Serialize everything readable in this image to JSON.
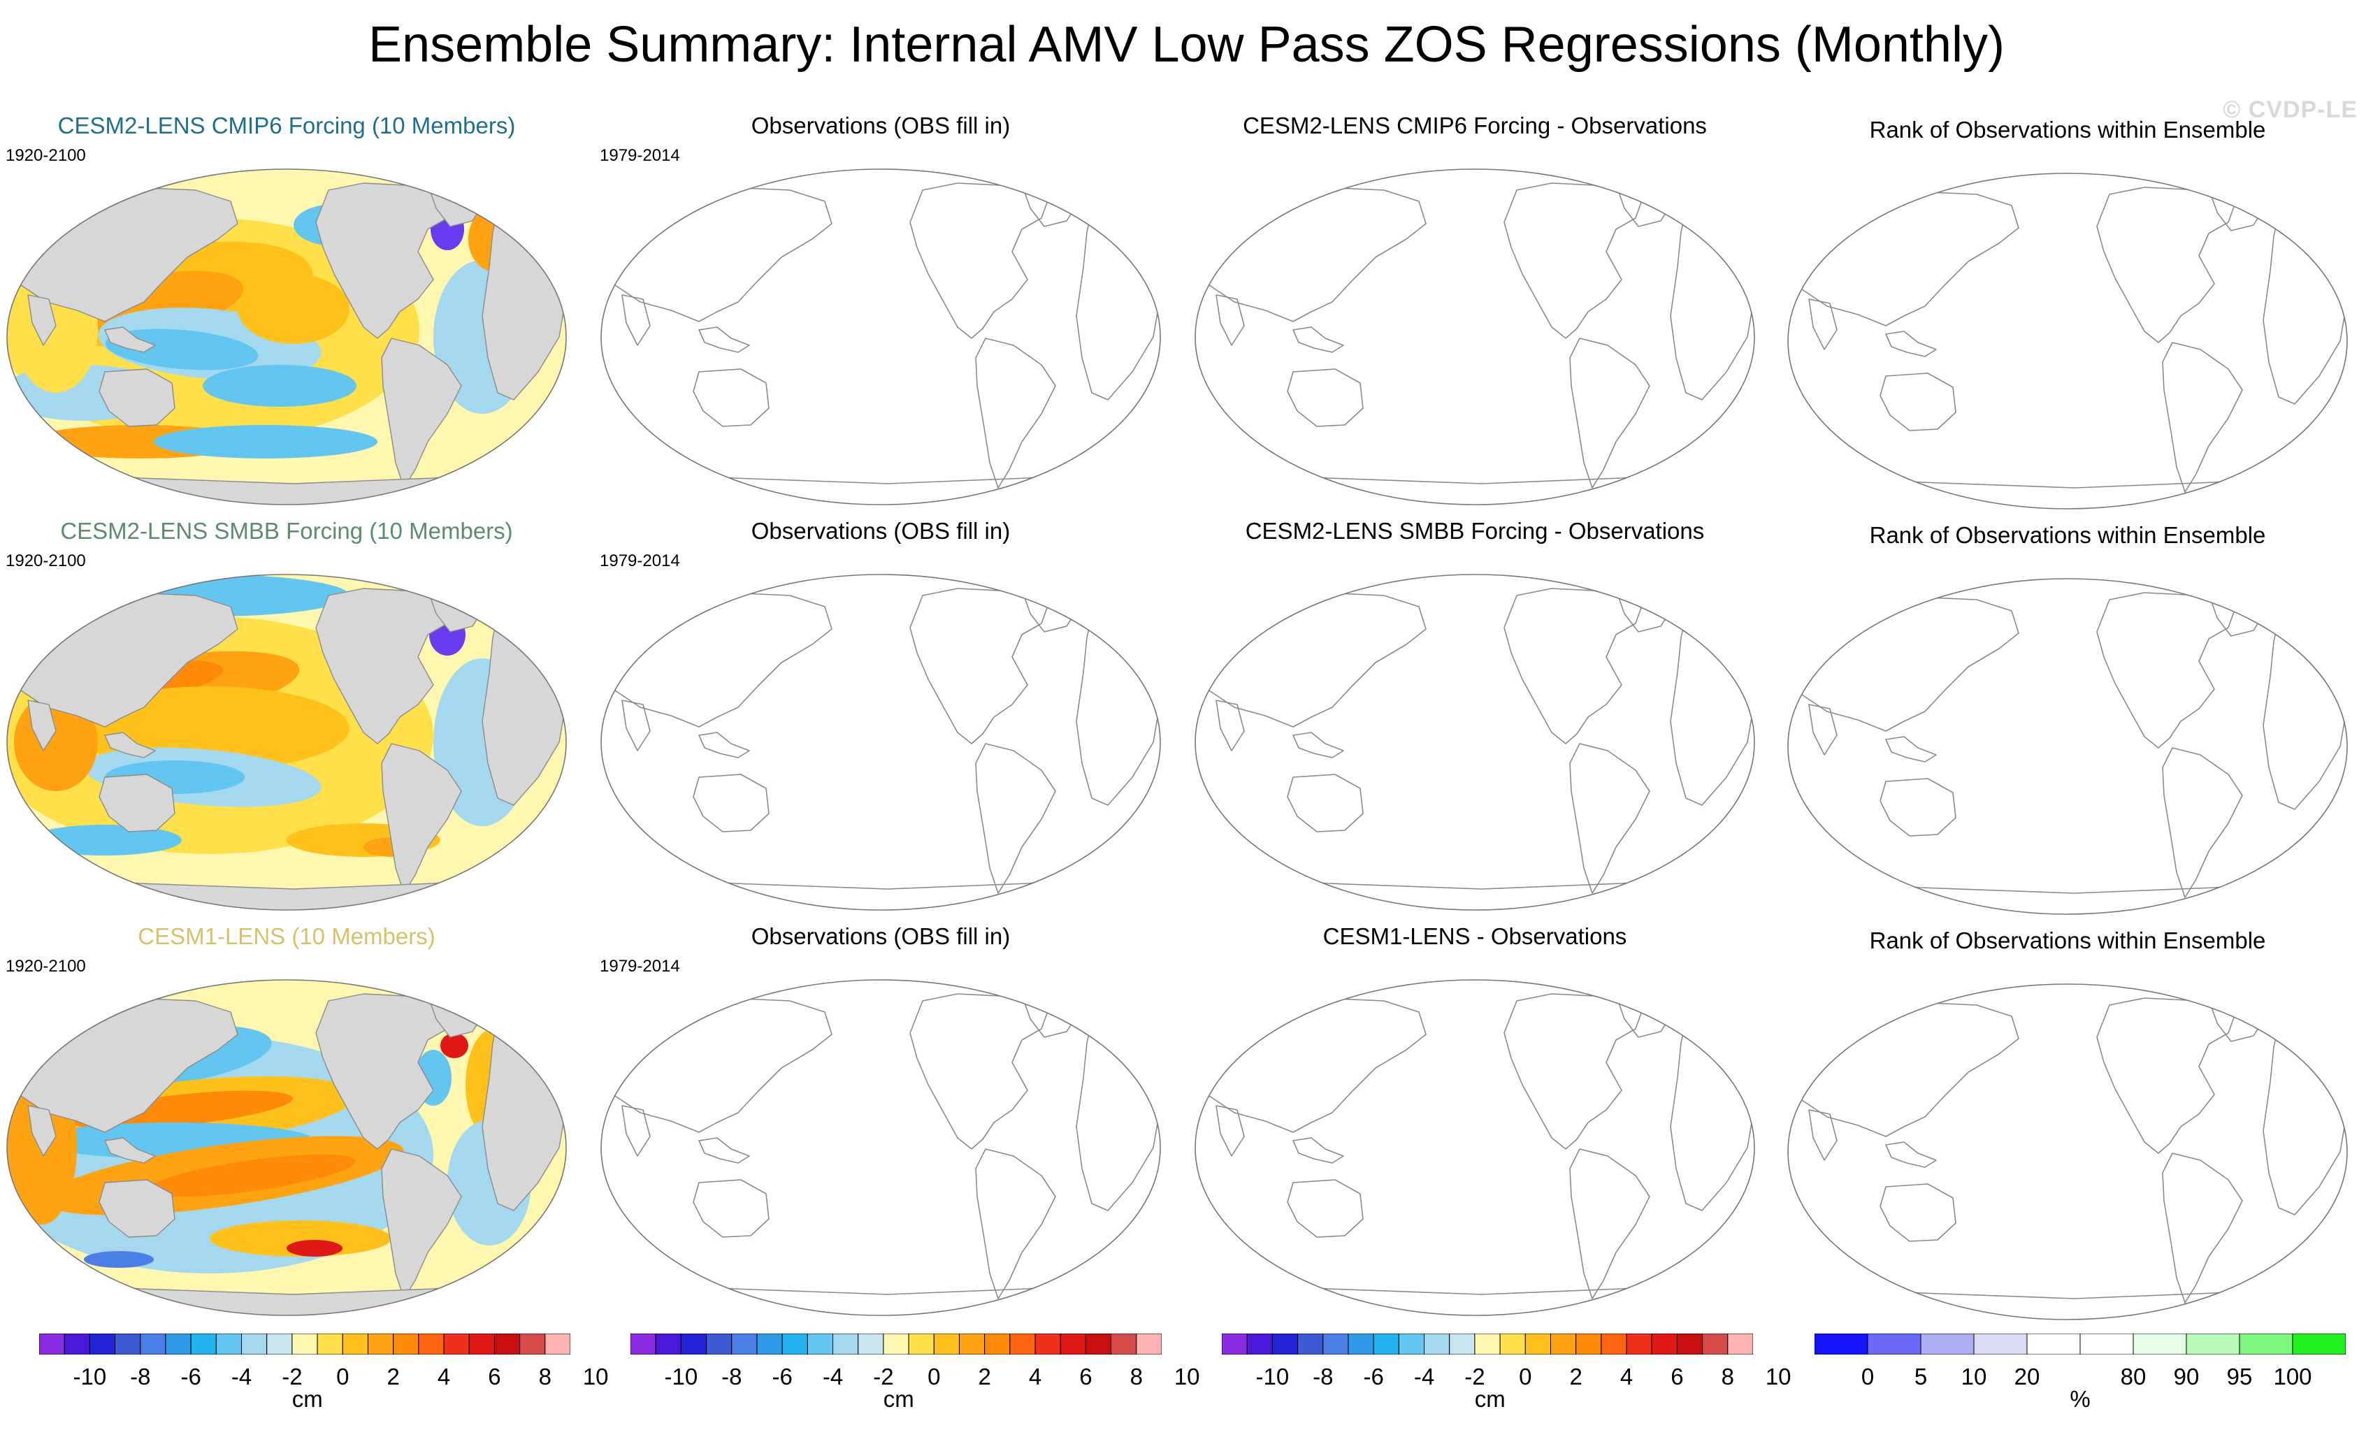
{
  "title": "Ensemble Summary: Internal AMV Low Pass ZOS Regressions (Monthly)",
  "watermark": "© CVDP-LE",
  "rows": [
    {
      "ensemble_title": "CESM2-LENS CMIP6 Forcing (10 Members)",
      "ensemble_title_color": "#1f6e8c",
      "ensemble_period": "1920-2100",
      "obs_title": "Observations (OBS fill in)",
      "obs_period": "1979-2014",
      "diff_title": "CESM2-LENS CMIP6 Forcing - Observations",
      "rank_title": "Rank of Observations within Ensemble"
    },
    {
      "ensemble_title": "CESM2-LENS SMBB Forcing (10 Members)",
      "ensemble_title_color": "#5e8a6e",
      "ensemble_period": "1920-2100",
      "obs_title": "Observations (OBS fill in)",
      "obs_period": "1979-2014",
      "diff_title": "CESM2-LENS SMBB Forcing - Observations",
      "rank_title": "Rank of Observations within Ensemble"
    },
    {
      "ensemble_title": "CESM1-LENS (10 Members)",
      "ensemble_title_color": "#d6c26a",
      "ensemble_period": "1920-2100",
      "obs_title": "Observations (OBS fill in)",
      "obs_period": "1979-2014",
      "diff_title": "CESM1-LENS - Observations",
      "rank_title": "Rank of Observations within Ensemble"
    }
  ],
  "colorbars": {
    "cm": {
      "unit": "cm",
      "colors": [
        "#8a2be2",
        "#4b18d9",
        "#2323d8",
        "#3c5ad4",
        "#4c7ee8",
        "#2f9be8",
        "#21b4ee",
        "#63c6f0",
        "#a4d8ef",
        "#c8e6f2",
        "#fff7b0",
        "#ffe04a",
        "#ffc21c",
        "#ffa312",
        "#ff8a0a",
        "#ff6410",
        "#f0301c",
        "#e01818",
        "#c80e0e",
        "#d84b4b",
        "#ffb4b4"
      ],
      "labels": [
        "-10",
        "-8",
        "-6",
        "-4",
        "-2",
        "0",
        "2",
        "4",
        "6",
        "8",
        "10"
      ]
    },
    "pct": {
      "unit": "%",
      "colors": [
        "#1414ff",
        "#6a6af6",
        "#aeaef2",
        "#dcdcf6",
        "#ffffff",
        "#ffffff",
        "#e4fde4",
        "#b8fbb8",
        "#7cf67c",
        "#1ef01e"
      ],
      "labels": [
        "0",
        "5",
        "10",
        "20",
        "80",
        "90",
        "95",
        "100"
      ]
    }
  },
  "map_legend": {
    "land": "#d7d7d7",
    "coast": "#8a8a8a",
    "border": "#777777",
    "palette": {
      "deep_blue": "#4c7ee8",
      "blue": "#63c6f0",
      "light_blue": "#a4d8ef",
      "pale": "#fff7b0",
      "yellow": "#ffe04a",
      "gold": "#ffc21c",
      "orange": "#ffa312",
      "dark_orange": "#ff8a0a",
      "red": "#e01818",
      "purple": "#6a3cf0"
    }
  }
}
